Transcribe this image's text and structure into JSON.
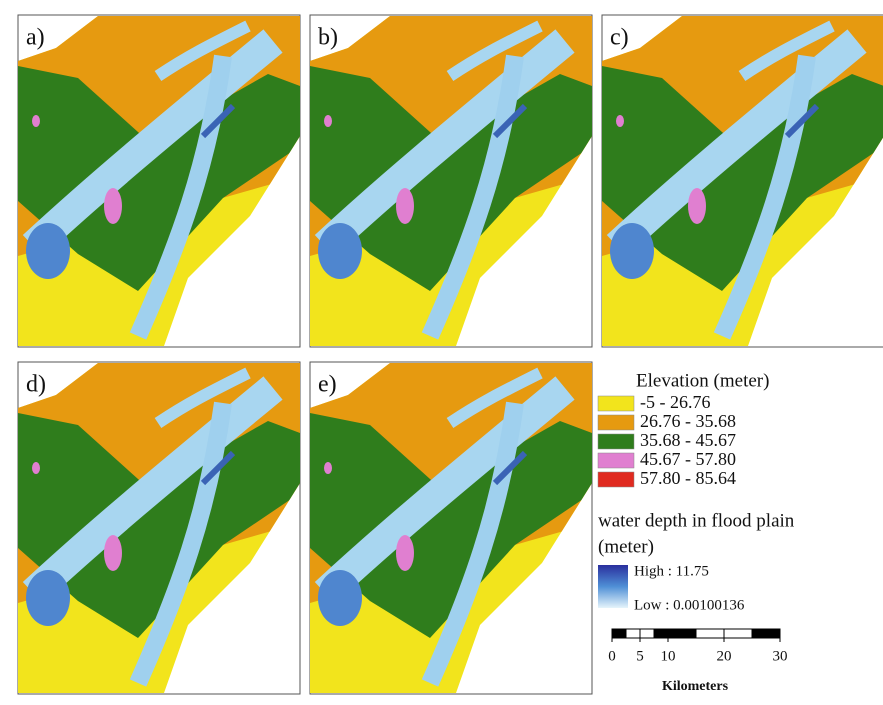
{
  "panels": [
    {
      "label": "a)"
    },
    {
      "label": "b)"
    },
    {
      "label": "c)"
    },
    {
      "label": "d)"
    },
    {
      "label": "e)"
    }
  ],
  "legend": {
    "elevation_title": "Elevation (meter)",
    "classes": [
      {
        "label": "-5 - 26.76",
        "color": "#f2e41c"
      },
      {
        "label": "26.76 - 35.68",
        "color": "#e69a10"
      },
      {
        "label": "35.68 - 45.67",
        "color": "#2f7d1c"
      },
      {
        "label": "45.67 - 57.80",
        "color": "#e07fd0"
      },
      {
        "label": "57.80 - 85.64",
        "color": "#e02a20"
      }
    ],
    "water_title": "water depth in flood plain",
    "water_unit": "(meter)",
    "high": "High : 11.75",
    "low": "Low : 0.00100136"
  },
  "scale_bar": {
    "ticks": [
      0,
      5,
      10,
      20,
      30
    ],
    "unit": "Kilometers"
  }
}
